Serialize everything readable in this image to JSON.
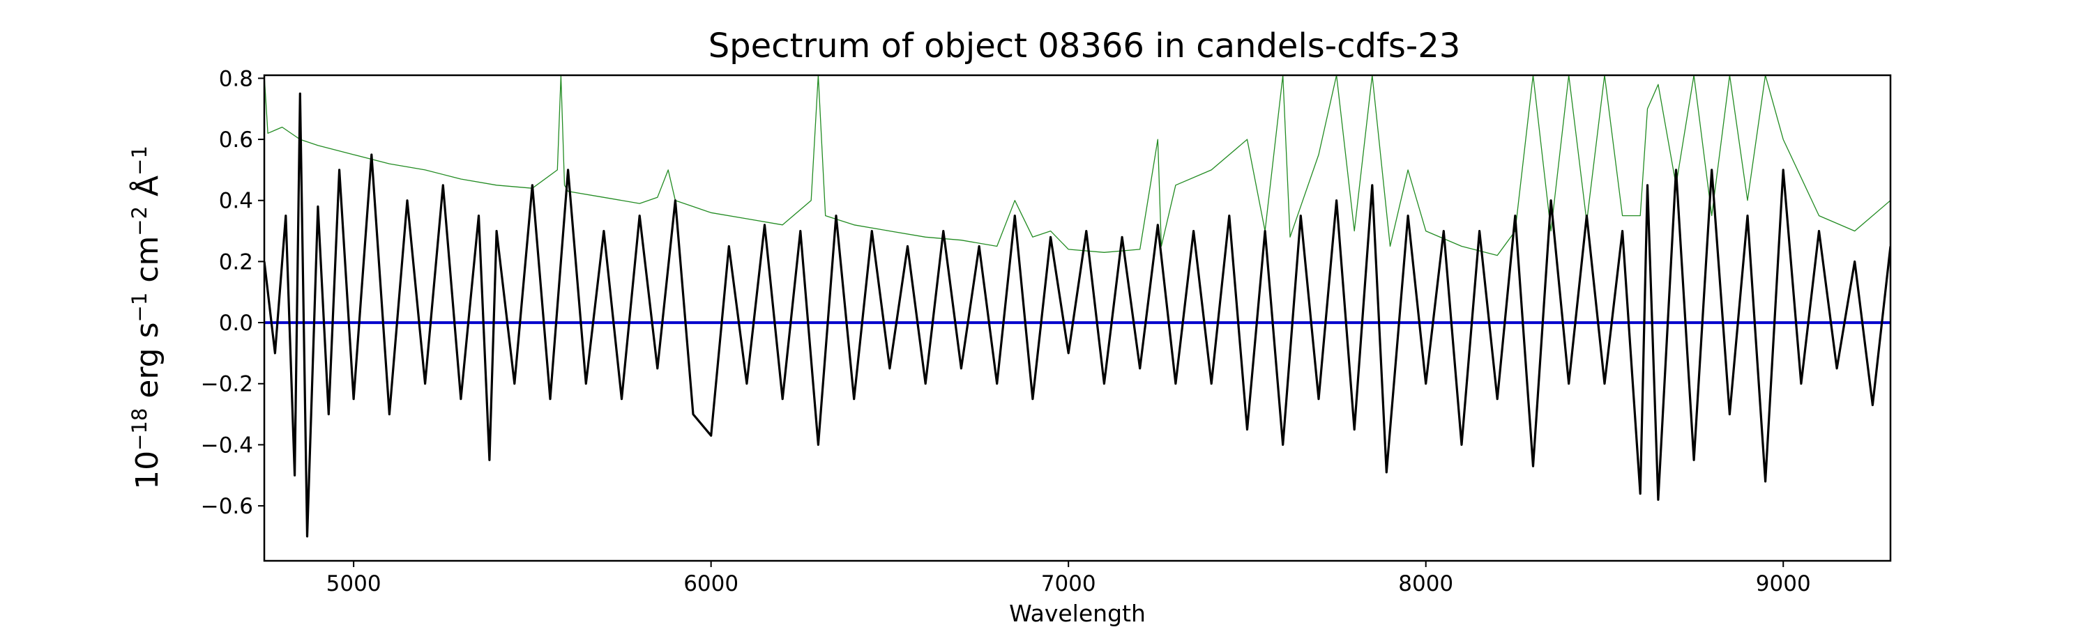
{
  "chart_data": {
    "type": "line",
    "title": "Spectrum of object 08366 in candels-cdfs-23",
    "xlabel": "Wavelength",
    "ylabel": {
      "base": "10",
      "exp": "−18",
      "erg": " erg s",
      "s_exp": "−1",
      "cm": " cm",
      "cm_exp": "−2",
      "ang": " Å",
      "ang_exp": "−1"
    },
    "xlim": [
      4750,
      9300
    ],
    "ylim": [
      -0.78,
      0.81
    ],
    "x_ticks": [
      5000,
      6000,
      7000,
      8000,
      9000
    ],
    "x_tick_labels": [
      "5000",
      "6000",
      "7000",
      "8000",
      "9000"
    ],
    "y_ticks": [
      -0.6,
      -0.4,
      -0.2,
      0.0,
      0.2,
      0.4,
      0.6,
      0.8
    ],
    "y_tick_labels": [
      "−0.6",
      "−0.4",
      "−0.2",
      "0.0",
      "0.2",
      "0.4",
      "0.6",
      "0.8"
    ],
    "grid": false,
    "legend": "none",
    "series": [
      {
        "role": "flux",
        "color": "#000000",
        "x": [
          4750,
          4780,
          4810,
          4835,
          4850,
          4870,
          4900,
          4930,
          4960,
          5000,
          5050,
          5100,
          5150,
          5200,
          5250,
          5300,
          5350,
          5380,
          5400,
          5450,
          5500,
          5550,
          5600,
          5650,
          5700,
          5750,
          5800,
          5850,
          5900,
          5950,
          6000,
          6050,
          6100,
          6150,
          6200,
          6250,
          6300,
          6350,
          6400,
          6450,
          6500,
          6550,
          6600,
          6650,
          6700,
          6750,
          6800,
          6850,
          6900,
          6950,
          7000,
          7050,
          7100,
          7150,
          7200,
          7250,
          7300,
          7350,
          7400,
          7450,
          7500,
          7550,
          7600,
          7650,
          7700,
          7750,
          7800,
          7850,
          7890,
          7950,
          8000,
          8050,
          8100,
          8150,
          8200,
          8250,
          8300,
          8350,
          8400,
          8450,
          8500,
          8550,
          8600,
          8620,
          8650,
          8700,
          8750,
          8800,
          8850,
          8900,
          8950,
          9000,
          9050,
          9100,
          9150,
          9200,
          9250,
          9300
        ],
        "y": [
          0.2,
          -0.1,
          0.35,
          -0.5,
          0.75,
          -0.7,
          0.38,
          -0.3,
          0.5,
          -0.25,
          0.55,
          -0.3,
          0.4,
          -0.2,
          0.45,
          -0.25,
          0.35,
          -0.45,
          0.3,
          -0.2,
          0.45,
          -0.25,
          0.5,
          -0.2,
          0.3,
          -0.25,
          0.35,
          -0.15,
          0.4,
          -0.3,
          -0.37,
          0.25,
          -0.2,
          0.32,
          -0.25,
          0.3,
          -0.4,
          0.35,
          -0.25,
          0.3,
          -0.15,
          0.25,
          -0.2,
          0.3,
          -0.15,
          0.25,
          -0.2,
          0.35,
          -0.25,
          0.28,
          -0.1,
          0.3,
          -0.2,
          0.28,
          -0.15,
          0.32,
          -0.2,
          0.3,
          -0.2,
          0.35,
          -0.35,
          0.3,
          -0.4,
          0.35,
          -0.25,
          0.4,
          -0.35,
          0.45,
          -0.49,
          0.35,
          -0.2,
          0.3,
          -0.4,
          0.3,
          -0.25,
          0.35,
          -0.47,
          0.4,
          -0.2,
          0.35,
          -0.2,
          0.3,
          -0.56,
          0.45,
          -0.58,
          0.5,
          -0.45,
          0.5,
          -0.3,
          0.35,
          -0.52,
          0.5,
          -0.2,
          0.3,
          -0.15,
          0.2,
          -0.27,
          0.25
        ]
      },
      {
        "role": "continuum",
        "color": "#0000cc",
        "x": [
          4750,
          9300
        ],
        "y": [
          0.0,
          0.0
        ]
      },
      {
        "role": "error",
        "color": "#228b22",
        "x": [
          4750,
          4760,
          4780,
          4800,
          4850,
          4900,
          5000,
          5100,
          5200,
          5300,
          5400,
          5500,
          5570,
          5580,
          5590,
          5600,
          5700,
          5800,
          5850,
          5880,
          5900,
          5950,
          6000,
          6100,
          6200,
          6280,
          6300,
          6320,
          6400,
          6500,
          6600,
          6700,
          6800,
          6850,
          6900,
          6950,
          7000,
          7100,
          7200,
          7250,
          7260,
          7300,
          7400,
          7500,
          7550,
          7600,
          7620,
          7700,
          7750,
          7800,
          7850,
          7900,
          7950,
          8000,
          8100,
          8200,
          8250,
          8300,
          8350,
          8400,
          8450,
          8500,
          8550,
          8600,
          8620,
          8650,
          8700,
          8750,
          8800,
          8850,
          8900,
          8950,
          9000,
          9100,
          9200,
          9300
        ],
        "y": [
          0.81,
          0.62,
          0.63,
          0.64,
          0.6,
          0.58,
          0.55,
          0.52,
          0.5,
          0.47,
          0.45,
          0.44,
          0.5,
          0.81,
          0.45,
          0.43,
          0.41,
          0.39,
          0.41,
          0.5,
          0.4,
          0.38,
          0.36,
          0.34,
          0.32,
          0.4,
          0.81,
          0.35,
          0.32,
          0.3,
          0.28,
          0.27,
          0.25,
          0.4,
          0.28,
          0.3,
          0.24,
          0.23,
          0.24,
          0.6,
          0.25,
          0.45,
          0.5,
          0.6,
          0.3,
          0.81,
          0.28,
          0.55,
          0.81,
          0.3,
          0.81,
          0.25,
          0.5,
          0.3,
          0.25,
          0.22,
          0.3,
          0.81,
          0.3,
          0.81,
          0.33,
          0.81,
          0.35,
          0.35,
          0.7,
          0.78,
          0.45,
          0.81,
          0.35,
          0.81,
          0.4,
          0.81,
          0.6,
          0.35,
          0.3,
          0.4
        ]
      }
    ]
  }
}
